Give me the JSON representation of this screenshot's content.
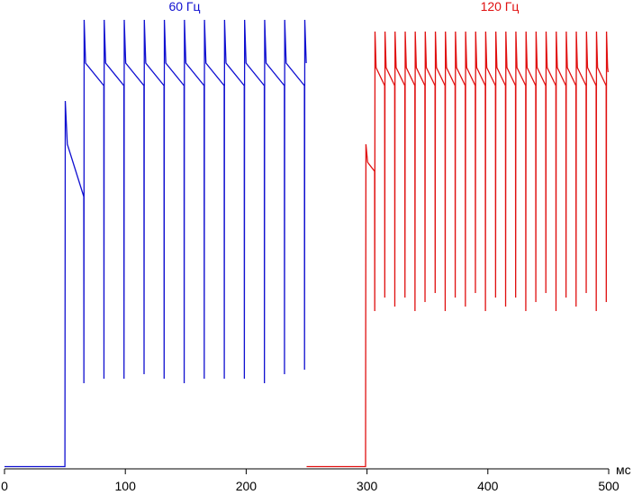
{
  "chart_data": {
    "type": "line",
    "x_label": "мс",
    "xlim": [
      0,
      500
    ],
    "xticks": [
      0,
      100,
      200,
      300,
      400,
      500
    ],
    "ylim": [
      0,
      100
    ],
    "grid": false,
    "series": [
      {
        "name": "60 Гц",
        "color": "#1010d0",
        "x": [
          0,
          50,
          50.3,
          52,
          65.6,
          65.7,
          65.9,
          67.1,
          82.2,
          82.3,
          82.5,
          83.7,
          98.8,
          98.9,
          99.1,
          100.3,
          115.4,
          115.5,
          115.7,
          116.9,
          132,
          132.1,
          132.3,
          133.5,
          148.6,
          148.7,
          148.9,
          150.1,
          165.2,
          165.3,
          165.5,
          166.7,
          181.8,
          181.9,
          182.1,
          183.3,
          198.4,
          198.5,
          198.7,
          199.9,
          215,
          215.1,
          215.3,
          216.5,
          231.6,
          231.7,
          231.9,
          233.1,
          248.2,
          248.3,
          248.5,
          249.7
        ],
        "values": [
          0.5,
          0.5,
          81.6,
          72,
          60.4,
          19,
          99.6,
          90,
          85,
          20,
          99.6,
          90,
          85,
          20,
          99.6,
          90,
          85,
          21,
          99.6,
          90,
          85,
          20,
          99.6,
          90,
          85,
          19,
          99.6,
          90,
          85,
          20,
          99.6,
          90,
          85,
          20,
          99.6,
          90,
          85,
          20,
          99.6,
          90,
          85,
          19,
          99.6,
          90,
          85,
          21,
          99.6,
          90,
          85,
          22,
          99.6,
          90
        ]
      },
      {
        "name": "120 Гц",
        "color": "#e01010",
        "x": [
          250,
          298.8,
          299.1,
          300.5,
          306.3,
          306.4,
          306.6,
          307.5,
          314.6,
          314.7,
          314.9,
          315.8,
          322.9,
          323,
          323.2,
          324.1,
          331.3,
          331.4,
          331.6,
          332.5,
          339.6,
          339.7,
          339.9,
          340.8,
          347.9,
          348,
          348.2,
          349.1,
          356.3,
          356.4,
          356.6,
          357.5,
          364.6,
          364.7,
          364.9,
          365.8,
          372.9,
          373,
          373.2,
          374.1,
          381.3,
          381.4,
          381.6,
          382.5,
          389.6,
          389.7,
          389.9,
          390.8,
          397.9,
          398,
          398.2,
          399.1,
          406.3,
          406.4,
          406.6,
          407.5,
          414.6,
          414.7,
          414.9,
          415.8,
          422.9,
          423,
          423.2,
          424.1,
          431.3,
          431.4,
          431.6,
          432.5,
          439.6,
          439.7,
          439.9,
          440.8,
          447.9,
          448,
          448.2,
          449.1,
          456.3,
          456.4,
          456.6,
          457.5,
          464.6,
          464.7,
          464.9,
          465.8,
          472.9,
          473,
          473.2,
          474.1,
          481.3,
          481.4,
          481.6,
          482.5,
          489.6,
          489.7,
          489.9,
          490.8,
          497.9,
          498,
          498.2,
          499.1,
          499.5
        ],
        "values": [
          0.5,
          0.5,
          72,
          68,
          66,
          35,
          97,
          89,
          85,
          38,
          97,
          89,
          85,
          36,
          97,
          89,
          85,
          38,
          97,
          89,
          85,
          35,
          97,
          89,
          85,
          37,
          97,
          89,
          85,
          39,
          97,
          89,
          85,
          35,
          97,
          89,
          85,
          38,
          97,
          89,
          85,
          36,
          97,
          89,
          85,
          39,
          97,
          89,
          85,
          35,
          97,
          89,
          85,
          38,
          97,
          89,
          85,
          36,
          97,
          89,
          85,
          38,
          97,
          89,
          85,
          35,
          97,
          89,
          85,
          37,
          97,
          89,
          85,
          39,
          97,
          89,
          85,
          35,
          97,
          89,
          85,
          38,
          97,
          89,
          85,
          36,
          97,
          89,
          85,
          39,
          97,
          89,
          85,
          35,
          97,
          89,
          85,
          37,
          97,
          89,
          88
        ]
      }
    ]
  }
}
